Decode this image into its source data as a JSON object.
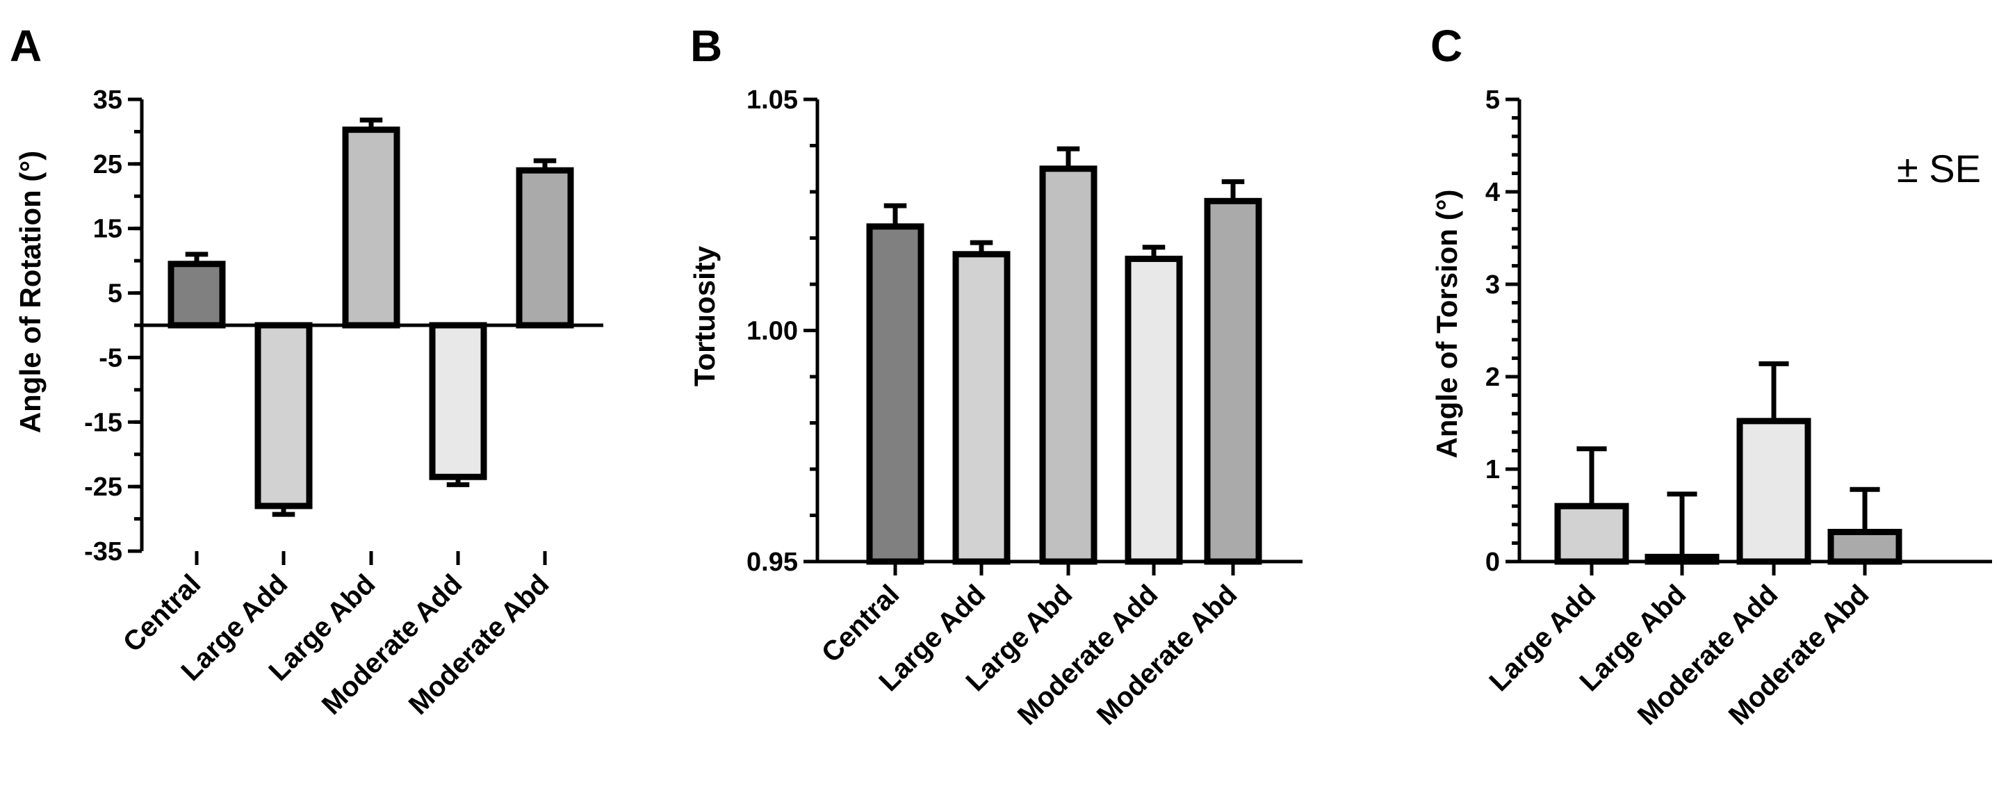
{
  "colors": {
    "Central": "#808080",
    "Large Add": "#d2d2d2",
    "Large Abd": "#c0c0c0",
    "Moderate Add": "#e8e8e8",
    "Moderate Abd": "#aaaaaa"
  },
  "chart_data": [
    {
      "panel": "A",
      "type": "bar",
      "ylabel": "Angle of Rotation (°)",
      "ylim": [
        -35,
        35
      ],
      "yticks": [
        35,
        25,
        15,
        5,
        -5,
        -15,
        -25,
        -35
      ],
      "categories": [
        "Central",
        "Large Add",
        "Large Abd",
        "Moderate Add",
        "Moderate Abd"
      ],
      "values": [
        9.5,
        -28,
        30.3,
        -23.5,
        24
      ],
      "errors": [
        1.5,
        1.3,
        1.5,
        1.2,
        1.5
      ]
    },
    {
      "panel": "B",
      "type": "bar",
      "ylabel": "Tortuosity",
      "ylim": [
        0.95,
        1.05
      ],
      "yticks": [
        "1.05",
        "1.00",
        "0.95"
      ],
      "yminor": 10,
      "categories": [
        "Central",
        "Large Add",
        "Large Abd",
        "Moderate Add",
        "Moderate Abd"
      ],
      "values": [
        1.0225,
        1.0165,
        1.035,
        1.0155,
        1.028
      ],
      "errors": [
        0.0045,
        0.0025,
        0.0043,
        0.0025,
        0.0042
      ]
    },
    {
      "panel": "C",
      "type": "bar",
      "ylabel": "Angle of Torsion (°)",
      "ylim": [
        0,
        5
      ],
      "yticks": [
        5,
        4,
        3,
        2,
        1,
        0
      ],
      "yminor": 25,
      "annotation": "± SE",
      "categories": [
        "Large Add",
        "Large Abd",
        "Moderate Add",
        "Moderate Abd"
      ],
      "values": [
        0.6,
        0.05,
        1.52,
        0.32
      ],
      "errors": [
        0.62,
        0.68,
        0.62,
        0.46
      ]
    }
  ]
}
